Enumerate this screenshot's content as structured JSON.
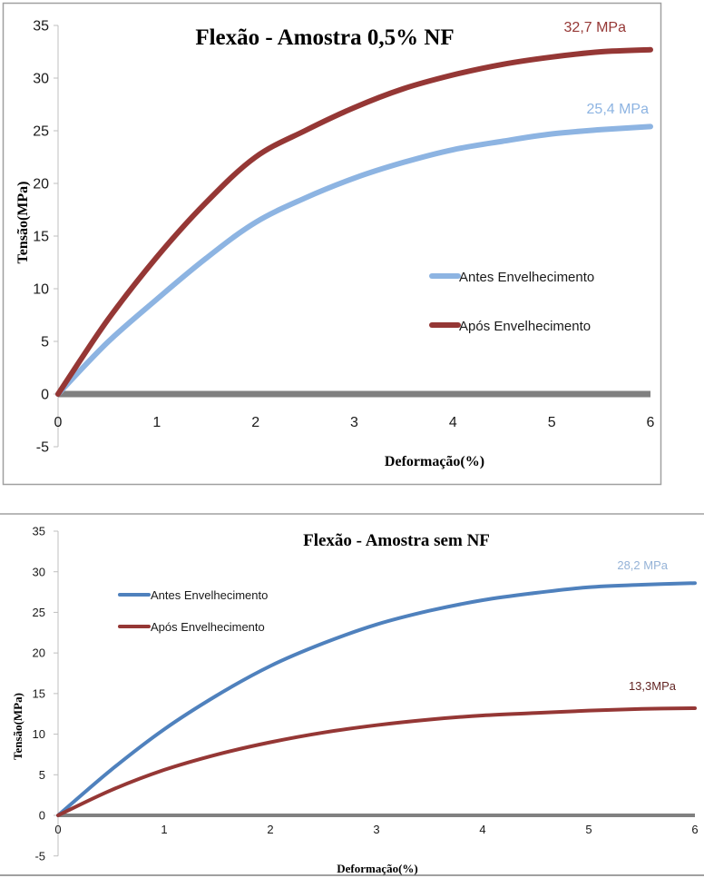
{
  "chart_data": [
    {
      "type": "line",
      "title": "Flexão - Amostra 0,5% NF",
      "xlabel": "Deformação(%)",
      "ylabel": "Tensão(MPa)",
      "xlim": [
        0,
        6
      ],
      "ylim": [
        -5,
        35
      ],
      "x_ticks": [
        "0",
        "1",
        "2",
        "3",
        "4",
        "5",
        "6"
      ],
      "y_ticks": [
        "35",
        "30",
        "25",
        "20",
        "15",
        "10",
        "5",
        "0",
        "-5"
      ],
      "grid": false,
      "legend_position": "center-right",
      "series": [
        {
          "name": "Antes Envelhecimento",
          "color": "#8db4e2",
          "x": [
            0,
            0.5,
            1,
            1.5,
            2,
            2.5,
            3,
            3.5,
            4,
            4.5,
            5,
            5.5,
            6
          ],
          "y": [
            0,
            4.9,
            9.0,
            12.9,
            16.3,
            18.6,
            20.5,
            22.0,
            23.2,
            24.0,
            24.7,
            25.1,
            25.4
          ]
        },
        {
          "name": "Após Envelhecimento",
          "color": "#953735",
          "x": [
            0,
            0.5,
            1,
            1.5,
            2,
            2.5,
            3,
            3.5,
            4,
            4.5,
            5,
            5.5,
            6
          ],
          "y": [
            0,
            7.0,
            13.0,
            18.2,
            22.5,
            25.0,
            27.2,
            29.0,
            30.3,
            31.3,
            32.0,
            32.5,
            32.7
          ]
        },
        {
          "name": "zero-line",
          "color": "#808080",
          "x": [
            0,
            6
          ],
          "y": [
            0,
            0
          ]
        }
      ],
      "annotations": [
        {
          "text": "32,7 MPa",
          "series": "Após Envelhecimento",
          "color": "#953735"
        },
        {
          "text": "25,4 MPa",
          "series": "Antes Envelhecimento",
          "color": "#8db4e2"
        }
      ]
    },
    {
      "type": "line",
      "title": "Flexão - Amostra sem NF",
      "xlabel": "Deformação(%)",
      "ylabel": "Tensão(MPa)",
      "xlim": [
        0,
        6
      ],
      "ylim": [
        -5,
        35
      ],
      "x_ticks": [
        "0",
        "1",
        "2",
        "3",
        "4",
        "5",
        "6"
      ],
      "y_ticks": [
        "35",
        "30",
        "25",
        "20",
        "15",
        "10",
        "5",
        "0",
        "-5"
      ],
      "grid": false,
      "legend_position": "top-left",
      "series": [
        {
          "name": "Antes Envelhecimento",
          "color": "#4f81bd",
          "x": [
            0,
            0.5,
            1,
            1.5,
            2,
            2.5,
            3,
            3.5,
            4,
            4.5,
            5,
            5.5,
            6
          ],
          "y": [
            0,
            5.6,
            10.6,
            14.8,
            18.4,
            21.2,
            23.5,
            25.2,
            26.5,
            27.4,
            28.1,
            28.4,
            28.6
          ]
        },
        {
          "name": "Após Envelhecimento",
          "color": "#953735",
          "x": [
            0,
            0.5,
            1,
            1.5,
            2,
            2.5,
            3,
            3.5,
            4,
            4.5,
            5,
            5.5,
            6
          ],
          "y": [
            0,
            3.1,
            5.6,
            7.5,
            9.0,
            10.2,
            11.1,
            11.8,
            12.3,
            12.6,
            12.9,
            13.1,
            13.2
          ]
        },
        {
          "name": "zero-line",
          "color": "#808080",
          "x": [
            0,
            6
          ],
          "y": [
            0,
            0
          ]
        }
      ],
      "annotations": [
        {
          "text": "28,2 MPa",
          "series": "Antes Envelhecimento",
          "color": "#95b3d7"
        },
        {
          "text": "13,3MPa",
          "series": "Após Envelhecimento",
          "color": "#632523"
        }
      ]
    }
  ]
}
